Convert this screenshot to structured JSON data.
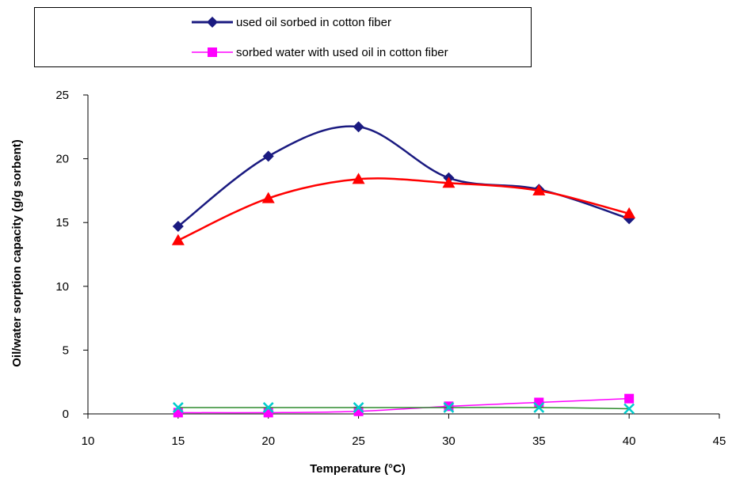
{
  "chart_data": {
    "type": "line",
    "xlabel": "Temperature (°C)",
    "ylabel": "Oil/water sorption capacity (g/g sorbent)",
    "xlim": [
      10,
      45
    ],
    "ylim": [
      0,
      25
    ],
    "xticks": [
      10,
      15,
      20,
      25,
      30,
      35,
      40,
      45
    ],
    "yticks": [
      0,
      5,
      10,
      15,
      20,
      25
    ],
    "grid": false,
    "legend_position": "top",
    "x": [
      15,
      20,
      25,
      30,
      35,
      40
    ],
    "series": [
      {
        "name": "used oil sorbed in cotton fiber",
        "values": [
          14.7,
          20.2,
          22.5,
          18.5,
          17.6,
          15.3
        ],
        "color": "#1a1a80",
        "marker": "diamond",
        "legend": true
      },
      {
        "name": "sorbed water with used  oil in cotton fiber",
        "values": [
          0.1,
          0.1,
          0.2,
          0.6,
          0.9,
          1.2
        ],
        "color": "#ff00ff",
        "marker": "square",
        "legend": true
      },
      {
        "values": [
          13.6,
          16.9,
          18.4,
          18.1,
          17.5,
          15.7
        ],
        "color": "#ff0000",
        "marker": "triangle",
        "legend": false
      },
      {
        "values": [
          0.5,
          0.5,
          0.5,
          0.5,
          0.5,
          0.4
        ],
        "color": "#00cccc",
        "marker": "x",
        "line_color": "#2e8b2e",
        "legend": false
      }
    ]
  }
}
